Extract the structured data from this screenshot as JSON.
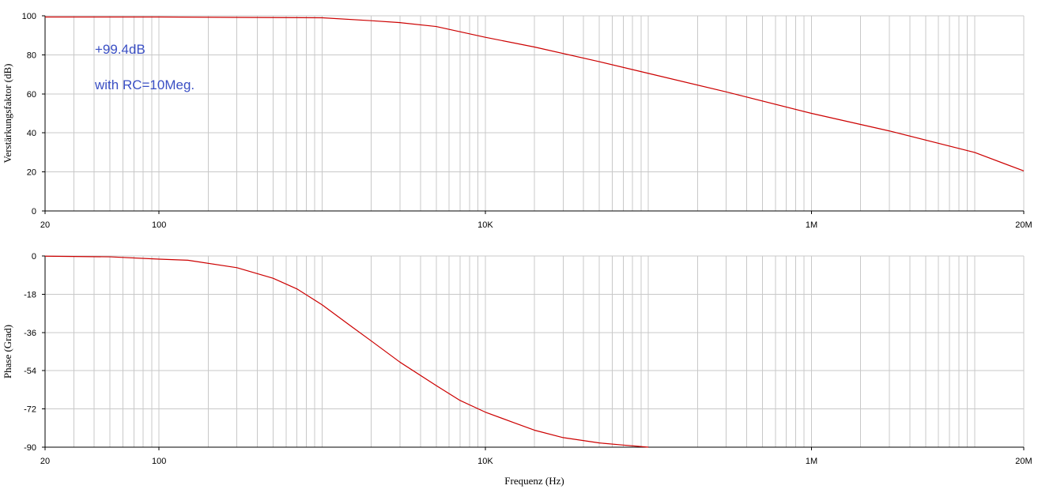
{
  "chart_data": [
    {
      "type": "line",
      "xscale": "log",
      "xlim": [
        20,
        20000000
      ],
      "ylim": [
        0,
        100
      ],
      "grid": true,
      "xlabel": "",
      "ylabel": "Verstärkungsfaktor (dB)",
      "x_ticks": [
        {
          "value": 20,
          "label": "20"
        },
        {
          "value": 100,
          "label": "100"
        },
        {
          "value": 10000,
          "label": "10K"
        },
        {
          "value": 1000000,
          "label": "1M"
        },
        {
          "value": 20000000,
          "label": "20M"
        }
      ],
      "y_ticks": [
        {
          "value": 0,
          "label": "0"
        },
        {
          "value": 20,
          "label": "20"
        },
        {
          "value": 40,
          "label": "40"
        },
        {
          "value": 60,
          "label": "60"
        },
        {
          "value": 80,
          "label": "80"
        },
        {
          "value": 100,
          "label": "100"
        }
      ],
      "annotations": [
        "+99.4dB",
        "with RC=10Meg."
      ],
      "series": [
        {
          "color": "#cc0000",
          "x": [
            20,
            100,
            300,
            1000,
            2000,
            3000,
            5000,
            10000,
            20000,
            50000,
            100000,
            300000,
            1000000,
            3000000,
            10000000,
            20000000
          ],
          "y": [
            99.4,
            99.4,
            99.2,
            99.0,
            97.5,
            96.5,
            94.5,
            89.0,
            84.0,
            76.5,
            70.5,
            61.0,
            50.0,
            41.0,
            30.0,
            20.5
          ]
        }
      ]
    },
    {
      "type": "line",
      "xscale": "log",
      "xlim": [
        20,
        20000000
      ],
      "ylim": [
        -90,
        0
      ],
      "grid": true,
      "xlabel": "Frequenz (Hz)",
      "ylabel": "Phase (Grad)",
      "x_ticks": [
        {
          "value": 20,
          "label": "20"
        },
        {
          "value": 100,
          "label": "100"
        },
        {
          "value": 10000,
          "label": "10K"
        },
        {
          "value": 1000000,
          "label": "1M"
        },
        {
          "value": 20000000,
          "label": "20M"
        }
      ],
      "y_ticks": [
        {
          "value": 0,
          "label": "0"
        },
        {
          "value": -18,
          "label": "-18"
        },
        {
          "value": -36,
          "label": "-36"
        },
        {
          "value": -54,
          "label": "-54"
        },
        {
          "value": -72,
          "label": "-72"
        },
        {
          "value": -90,
          "label": "-90"
        }
      ],
      "series": [
        {
          "color": "#cc0000",
          "x": [
            20,
            50,
            100,
            150,
            300,
            500,
            700,
            1000,
            1500,
            2000,
            3000,
            5000,
            7000,
            10000,
            15000,
            20000,
            30000,
            50000,
            70000,
            100000
          ],
          "y": [
            -0.1,
            -0.4,
            -1.5,
            -2.0,
            -5.5,
            -10.5,
            -15.5,
            -23.0,
            -33.0,
            -40.0,
            -50.0,
            -61.0,
            -68.0,
            -73.5,
            -78.5,
            -82.0,
            -85.5,
            -88.0,
            -89.0,
            -90.0
          ]
        }
      ]
    }
  ]
}
